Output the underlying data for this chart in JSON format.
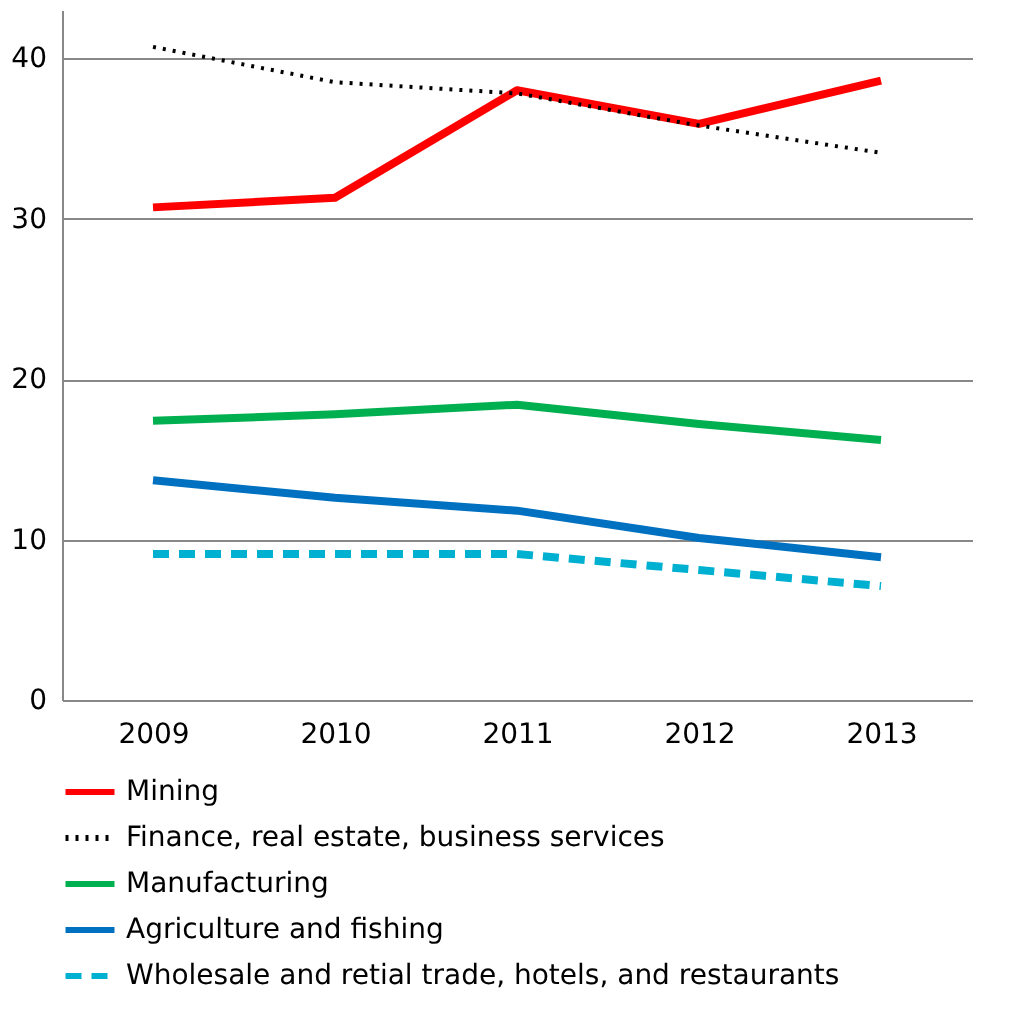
{
  "chart_data": {
    "type": "line",
    "categories": [
      "2009",
      "2010",
      "2011",
      "2012",
      "2013"
    ],
    "series": [
      {
        "name": "Mining",
        "color": "#ff0000",
        "line_style": "solid",
        "values": [
          30.7,
          31.3,
          38.0,
          35.9,
          38.6
        ]
      },
      {
        "name": "Finance, real estate, business services",
        "color": "#000000",
        "line_style": "dotted",
        "values": [
          40.7,
          38.5,
          37.8,
          35.8,
          34.1
        ]
      },
      {
        "name": "Manufacturing",
        "color": "#00b050",
        "line_style": "solid",
        "values": [
          17.4,
          17.8,
          18.4,
          17.2,
          16.2
        ]
      },
      {
        "name": "Agriculture and fishing",
        "color": "#0070c0",
        "line_style": "solid",
        "values": [
          13.7,
          12.6,
          11.8,
          10.1,
          8.9
        ]
      },
      {
        "name": "Wholesale and retial trade, hotels, and restaurants",
        "color": "#00b0d0",
        "line_style": "dashed",
        "values": [
          9.1,
          9.1,
          9.1,
          8.1,
          7.1
        ]
      }
    ],
    "ylim": [
      0,
      43
    ],
    "yticks": [
      0,
      10,
      20,
      30,
      40
    ],
    "grid": "y",
    "legend": "bottom",
    "marker": "none"
  }
}
